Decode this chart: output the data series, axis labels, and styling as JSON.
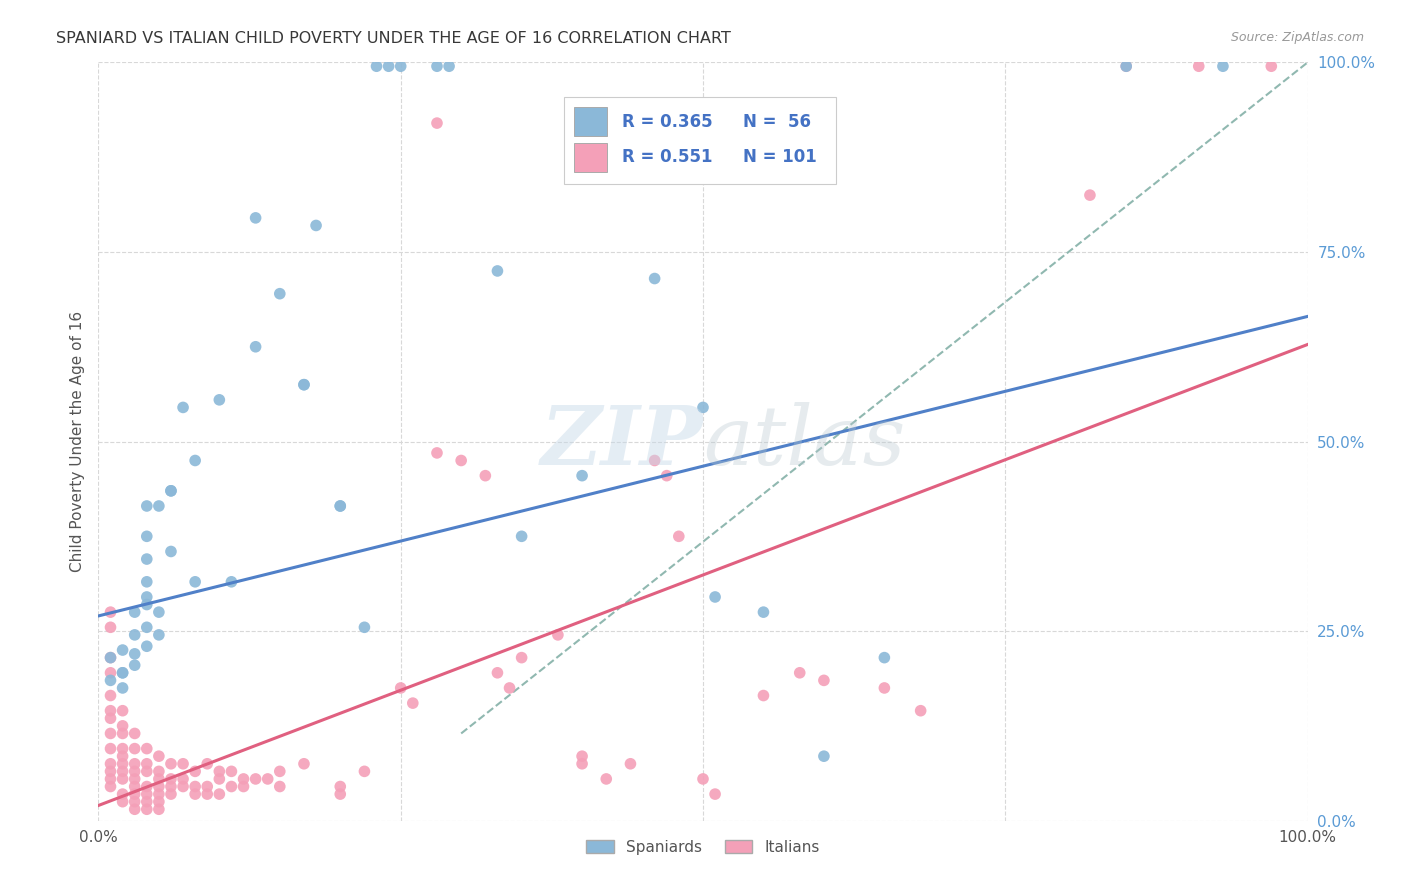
{
  "title": "SPANIARD VS ITALIAN CHILD POVERTY UNDER THE AGE OF 16 CORRELATION CHART",
  "source": "Source: ZipAtlas.com",
  "ylabel": "Child Poverty Under the Age of 16",
  "xlim": [
    0,
    1
  ],
  "ylim": [
    0,
    1
  ],
  "watermark": "ZIPatlas",
  "blue_color": "#8bb8d8",
  "pink_color": "#f4a0b8",
  "blue_line_color": "#5080c8",
  "pink_line_color": "#e06080",
  "dashed_line_color": "#90b8b0",
  "grid_color": "#d8d8d8",
  "title_color": "#383838",
  "right_axis_color": "#5b9bd5",
  "blue_line": [
    [
      0.0,
      0.27
    ],
    [
      1.0,
      0.665
    ]
  ],
  "pink_line": [
    [
      0.0,
      0.02
    ],
    [
      1.0,
      0.628
    ]
  ],
  "dashed_line": [
    [
      0.3,
      0.115
    ],
    [
      1.0,
      1.0
    ]
  ],
  "blue_scatter": [
    [
      0.01,
      0.185
    ],
    [
      0.01,
      0.215
    ],
    [
      0.02,
      0.195
    ],
    [
      0.02,
      0.175
    ],
    [
      0.02,
      0.225
    ],
    [
      0.02,
      0.195
    ],
    [
      0.03,
      0.245
    ],
    [
      0.03,
      0.22
    ],
    [
      0.03,
      0.275
    ],
    [
      0.03,
      0.205
    ],
    [
      0.04,
      0.23
    ],
    [
      0.04,
      0.255
    ],
    [
      0.04,
      0.295
    ],
    [
      0.04,
      0.315
    ],
    [
      0.04,
      0.375
    ],
    [
      0.04,
      0.415
    ],
    [
      0.04,
      0.285
    ],
    [
      0.04,
      0.345
    ],
    [
      0.05,
      0.245
    ],
    [
      0.05,
      0.415
    ],
    [
      0.05,
      0.275
    ],
    [
      0.06,
      0.435
    ],
    [
      0.06,
      0.355
    ],
    [
      0.06,
      0.435
    ],
    [
      0.07,
      0.545
    ],
    [
      0.08,
      0.475
    ],
    [
      0.08,
      0.315
    ],
    [
      0.1,
      0.555
    ],
    [
      0.11,
      0.315
    ],
    [
      0.13,
      0.795
    ],
    [
      0.13,
      0.625
    ],
    [
      0.15,
      0.695
    ],
    [
      0.17,
      0.575
    ],
    [
      0.17,
      0.575
    ],
    [
      0.18,
      0.785
    ],
    [
      0.2,
      0.415
    ],
    [
      0.2,
      0.415
    ],
    [
      0.22,
      0.255
    ],
    [
      0.23,
      0.995
    ],
    [
      0.24,
      0.995
    ],
    [
      0.25,
      0.995
    ],
    [
      0.28,
      0.995
    ],
    [
      0.29,
      0.995
    ],
    [
      0.33,
      0.725
    ],
    [
      0.35,
      0.375
    ],
    [
      0.4,
      0.455
    ],
    [
      0.46,
      0.715
    ],
    [
      0.5,
      0.545
    ],
    [
      0.51,
      0.295
    ],
    [
      0.55,
      0.275
    ],
    [
      0.6,
      0.085
    ],
    [
      0.65,
      0.215
    ],
    [
      0.85,
      0.995
    ],
    [
      0.93,
      0.995
    ]
  ],
  "pink_scatter": [
    [
      0.01,
      0.275
    ],
    [
      0.01,
      0.255
    ],
    [
      0.01,
      0.215
    ],
    [
      0.01,
      0.195
    ],
    [
      0.01,
      0.165
    ],
    [
      0.01,
      0.145
    ],
    [
      0.01,
      0.135
    ],
    [
      0.01,
      0.115
    ],
    [
      0.01,
      0.095
    ],
    [
      0.01,
      0.075
    ],
    [
      0.01,
      0.065
    ],
    [
      0.01,
      0.055
    ],
    [
      0.01,
      0.045
    ],
    [
      0.02,
      0.145
    ],
    [
      0.02,
      0.125
    ],
    [
      0.02,
      0.115
    ],
    [
      0.02,
      0.095
    ],
    [
      0.02,
      0.085
    ],
    [
      0.02,
      0.075
    ],
    [
      0.02,
      0.065
    ],
    [
      0.02,
      0.055
    ],
    [
      0.02,
      0.035
    ],
    [
      0.02,
      0.025
    ],
    [
      0.03,
      0.115
    ],
    [
      0.03,
      0.095
    ],
    [
      0.03,
      0.075
    ],
    [
      0.03,
      0.065
    ],
    [
      0.03,
      0.055
    ],
    [
      0.03,
      0.045
    ],
    [
      0.03,
      0.035
    ],
    [
      0.03,
      0.025
    ],
    [
      0.03,
      0.015
    ],
    [
      0.04,
      0.095
    ],
    [
      0.04,
      0.075
    ],
    [
      0.04,
      0.065
    ],
    [
      0.04,
      0.045
    ],
    [
      0.04,
      0.035
    ],
    [
      0.04,
      0.025
    ],
    [
      0.04,
      0.015
    ],
    [
      0.05,
      0.085
    ],
    [
      0.05,
      0.065
    ],
    [
      0.05,
      0.055
    ],
    [
      0.05,
      0.045
    ],
    [
      0.05,
      0.035
    ],
    [
      0.05,
      0.025
    ],
    [
      0.05,
      0.015
    ],
    [
      0.06,
      0.075
    ],
    [
      0.06,
      0.055
    ],
    [
      0.06,
      0.045
    ],
    [
      0.06,
      0.035
    ],
    [
      0.07,
      0.075
    ],
    [
      0.07,
      0.055
    ],
    [
      0.07,
      0.045
    ],
    [
      0.08,
      0.065
    ],
    [
      0.08,
      0.045
    ],
    [
      0.08,
      0.035
    ],
    [
      0.09,
      0.075
    ],
    [
      0.09,
      0.045
    ],
    [
      0.09,
      0.035
    ],
    [
      0.1,
      0.065
    ],
    [
      0.1,
      0.055
    ],
    [
      0.1,
      0.035
    ],
    [
      0.11,
      0.065
    ],
    [
      0.11,
      0.045
    ],
    [
      0.12,
      0.055
    ],
    [
      0.12,
      0.045
    ],
    [
      0.13,
      0.055
    ],
    [
      0.14,
      0.055
    ],
    [
      0.15,
      0.065
    ],
    [
      0.15,
      0.045
    ],
    [
      0.17,
      0.075
    ],
    [
      0.2,
      0.045
    ],
    [
      0.2,
      0.035
    ],
    [
      0.22,
      0.065
    ],
    [
      0.25,
      0.175
    ],
    [
      0.26,
      0.155
    ],
    [
      0.28,
      0.92
    ],
    [
      0.28,
      0.485
    ],
    [
      0.3,
      0.475
    ],
    [
      0.32,
      0.455
    ],
    [
      0.33,
      0.195
    ],
    [
      0.34,
      0.175
    ],
    [
      0.35,
      0.215
    ],
    [
      0.38,
      0.245
    ],
    [
      0.4,
      0.085
    ],
    [
      0.4,
      0.075
    ],
    [
      0.42,
      0.055
    ],
    [
      0.44,
      0.075
    ],
    [
      0.46,
      0.475
    ],
    [
      0.47,
      0.455
    ],
    [
      0.48,
      0.375
    ],
    [
      0.5,
      0.055
    ],
    [
      0.51,
      0.035
    ],
    [
      0.55,
      0.165
    ],
    [
      0.58,
      0.195
    ],
    [
      0.6,
      0.185
    ],
    [
      0.65,
      0.175
    ],
    [
      0.68,
      0.145
    ],
    [
      0.82,
      0.825
    ],
    [
      0.85,
      0.995
    ],
    [
      0.91,
      0.995
    ],
    [
      0.97,
      0.995
    ]
  ]
}
